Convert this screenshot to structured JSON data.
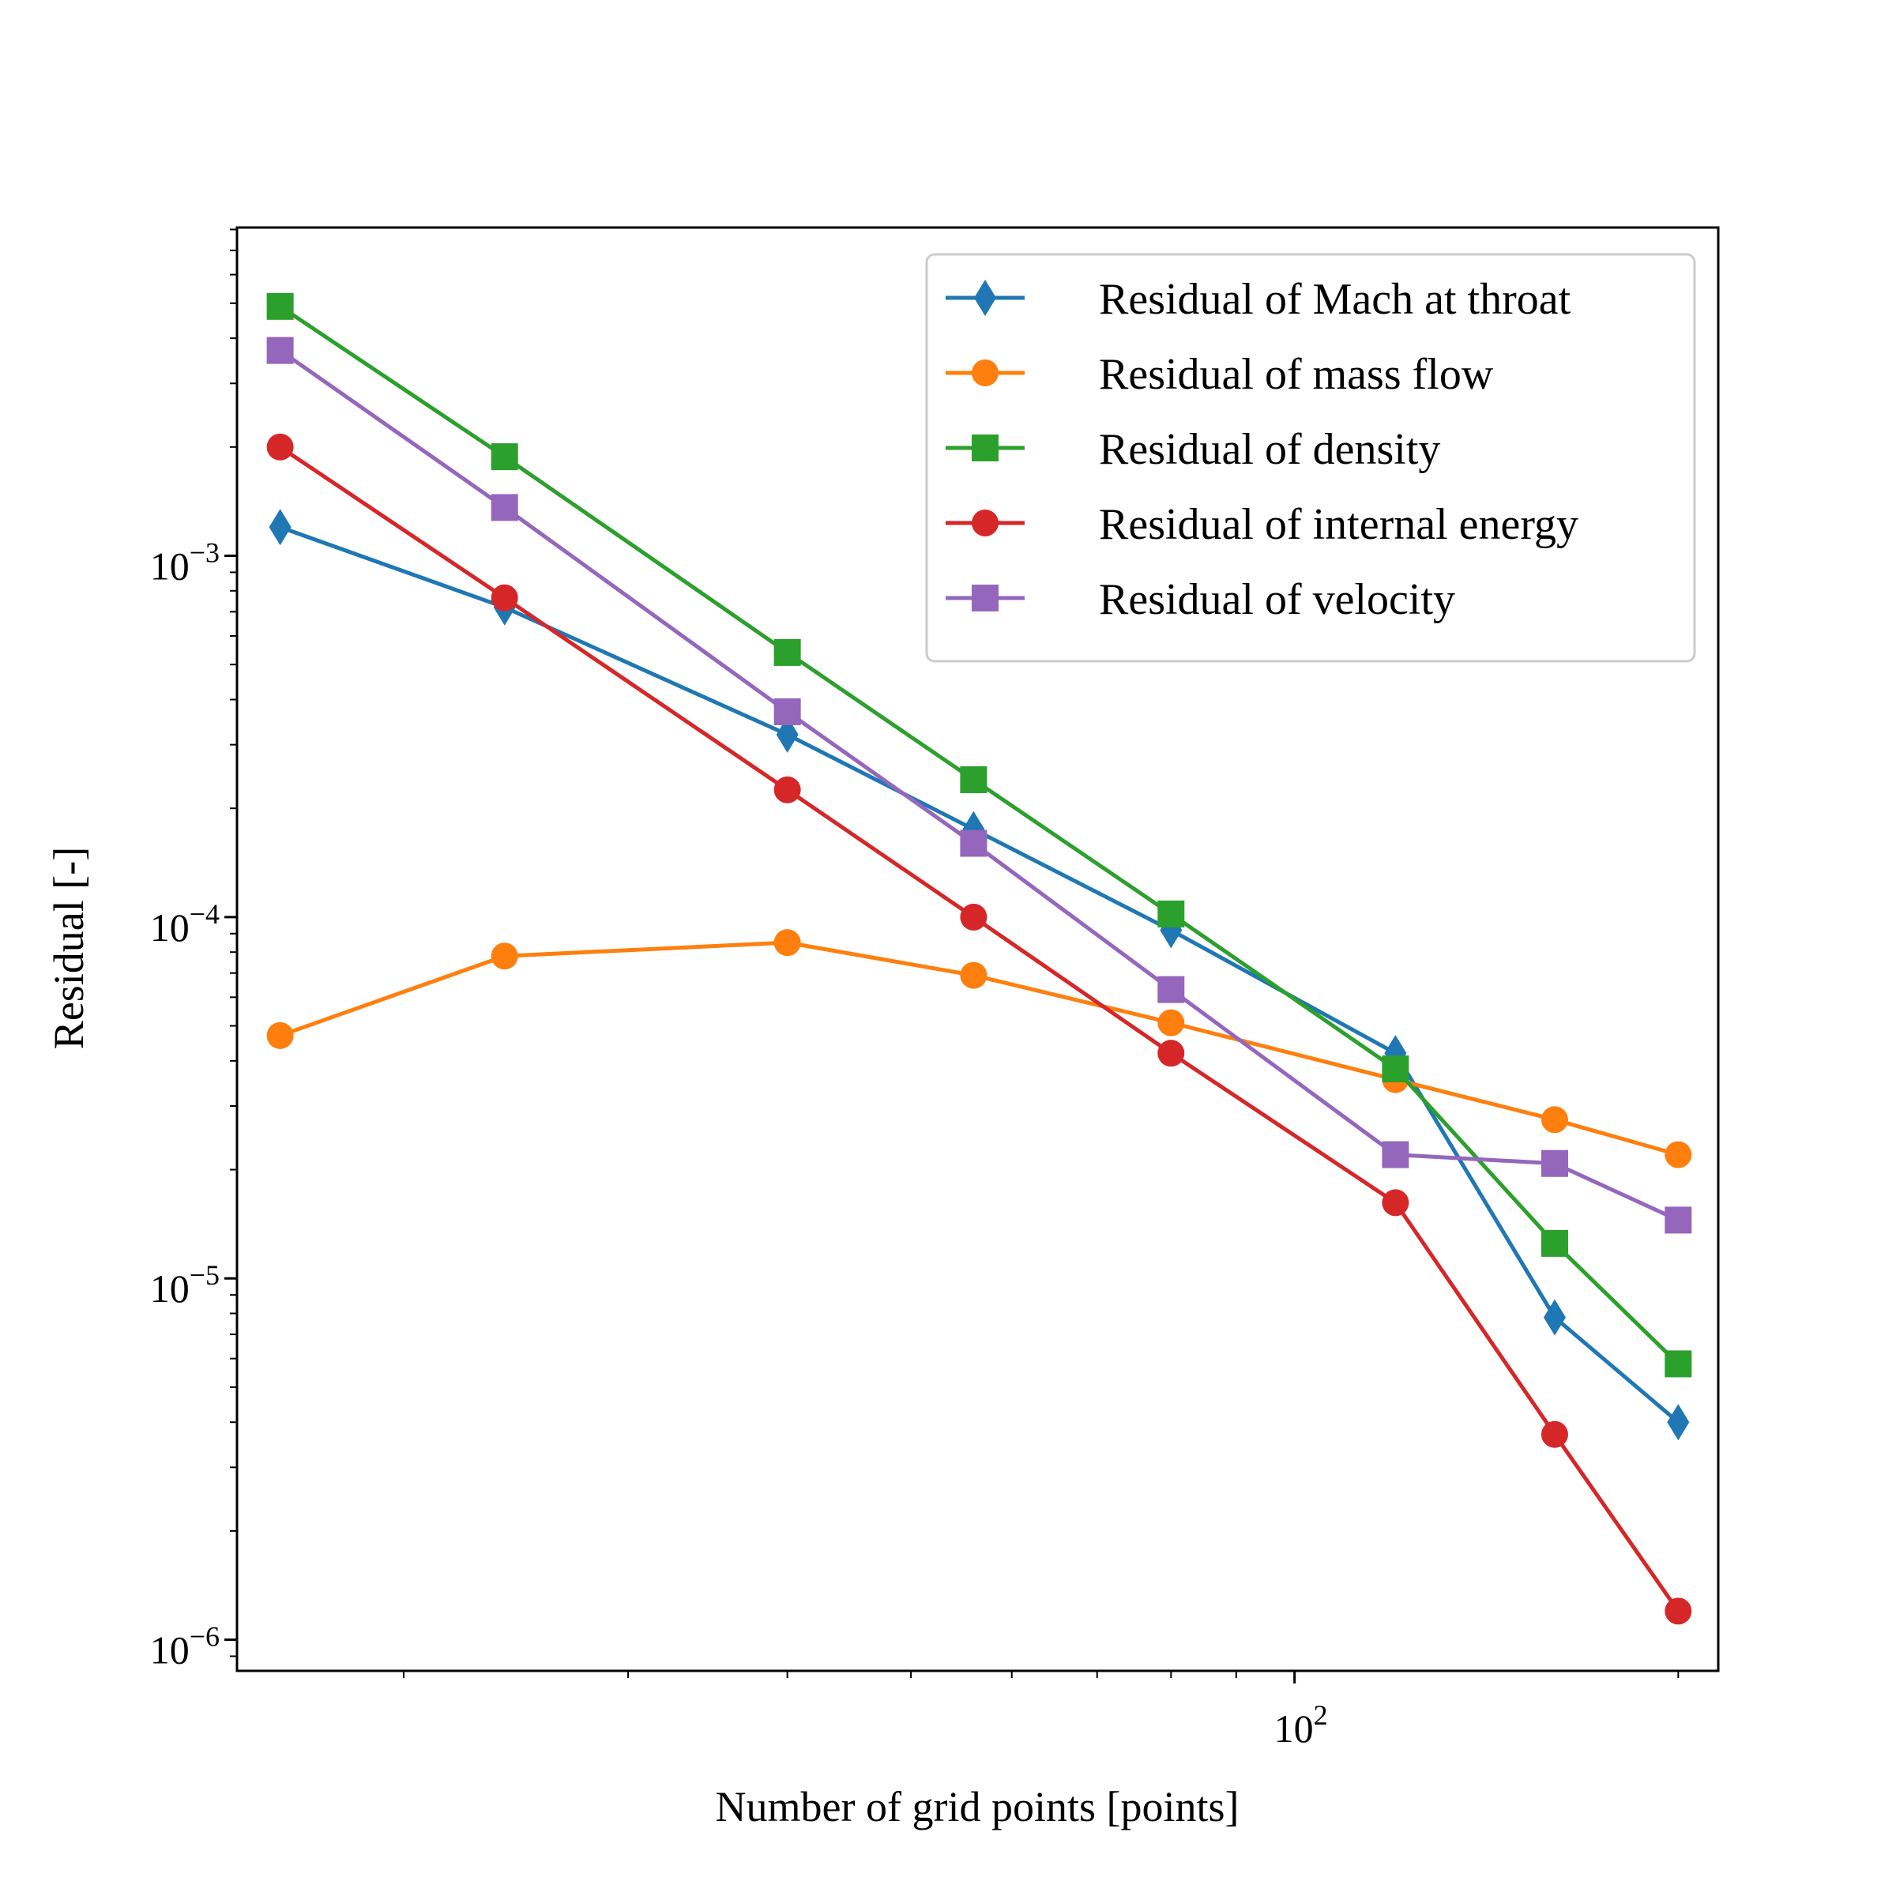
{
  "chart_data": {
    "type": "line",
    "title": "",
    "xlabel": "Number of grid points [points]",
    "ylabel": "Residual [-]",
    "xscale": "log",
    "yscale": "log",
    "xlim": [
      14.8,
      215
    ],
    "ylim": [
      8.2e-07,
      0.0081
    ],
    "grid": false,
    "legend_position": "top-right",
    "x_major_ticks": [
      {
        "value": 100,
        "base": "10",
        "exp": "2"
      }
    ],
    "x_minor_ticks": [
      20,
      30,
      40,
      50,
      60,
      70,
      80,
      90,
      200
    ],
    "y_major_ticks": [
      {
        "value": 0.001,
        "base": "10",
        "exp": "−3"
      },
      {
        "value": 0.0001,
        "base": "10",
        "exp": "−4"
      },
      {
        "value": 1e-05,
        "base": "10",
        "exp": "−5"
      },
      {
        "value": 1e-06,
        "base": "10",
        "exp": "−6"
      }
    ],
    "x": [
      16,
      24,
      40,
      56,
      80,
      120,
      160,
      200
    ],
    "series": [
      {
        "name": "Residual of Mach at throat",
        "color": "#1f77b4",
        "marker": "diamond",
        "values": [
          0.0012,
          0.00072,
          0.00032,
          0.000175,
          9.2e-05,
          4.2e-05,
          7.8e-06,
          4e-06
        ]
      },
      {
        "name": "Residual of mass flow",
        "color": "#ff7f0e",
        "marker": "circle",
        "values": [
          4.7e-05,
          7.8e-05,
          8.5e-05,
          6.9e-05,
          5.1e-05,
          3.55e-05,
          2.75e-05,
          2.2e-05
        ]
      },
      {
        "name": "Residual of density",
        "color": "#2ca02c",
        "marker": "square",
        "values": [
          0.0049,
          0.00188,
          0.00054,
          0.00024,
          0.000102,
          3.8e-05,
          1.25e-05,
          5.8e-06
        ]
      },
      {
        "name": "Residual of internal energy",
        "color": "#d62728",
        "marker": "circle",
        "values": [
          0.002,
          0.000765,
          0.000225,
          0.0001,
          4.2e-05,
          1.62e-05,
          3.7e-06,
          1.2e-06
        ]
      },
      {
        "name": "Residual of velocity",
        "color": "#9467bd",
        "marker": "square",
        "values": [
          0.0037,
          0.00136,
          0.00037,
          0.00016,
          6.3e-05,
          2.2e-05,
          2.08e-05,
          1.45e-05
        ]
      }
    ]
  }
}
